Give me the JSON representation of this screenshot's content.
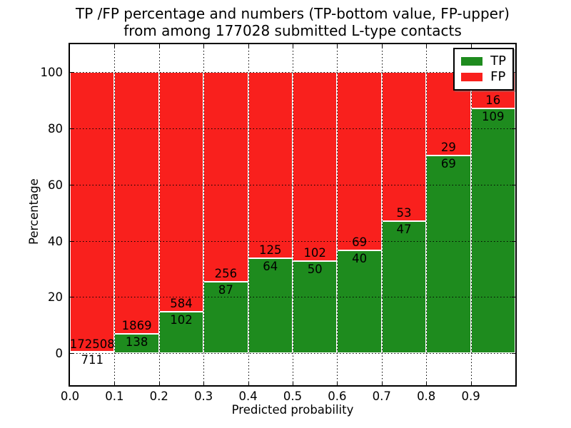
{
  "chart_data": {
    "type": "bar",
    "stacked": true,
    "title_line1": "TP /FP percentage and numbers (TP-bottom value, FP-upper)",
    "title_line2": "from among 177028 submitted L-type contacts",
    "xlabel": "Predicted probability",
    "ylabel": "Percentage",
    "x_ticks": [
      "0.0",
      "0.1",
      "0.2",
      "0.3",
      "0.4",
      "0.5",
      "0.6",
      "0.7",
      "0.8",
      "0.9"
    ],
    "y_ticks": [
      0,
      20,
      40,
      60,
      80,
      100
    ],
    "xlim": [
      0.0,
      1.0
    ],
    "ylim": [
      -11.4,
      110.0
    ],
    "bar_width": 0.1,
    "grid": true,
    "legend_position": "upper right",
    "colors": {
      "tp": "#1e8b1e",
      "fp": "#f9201d"
    },
    "legend": [
      {
        "label": "TP",
        "color": "#1e8b1e"
      },
      {
        "label": "FP",
        "color": "#f9201d"
      }
    ],
    "bins": [
      {
        "range": "0.0-0.1",
        "tp": 711,
        "fp": 172508
      },
      {
        "range": "0.1-0.2",
        "tp": 138,
        "fp": 1869
      },
      {
        "range": "0.2-0.3",
        "tp": 102,
        "fp": 584
      },
      {
        "range": "0.3-0.4",
        "tp": 87,
        "fp": 256
      },
      {
        "range": "0.4-0.5",
        "tp": 64,
        "fp": 125
      },
      {
        "range": "0.5-0.6",
        "tp": 50,
        "fp": 102
      },
      {
        "range": "0.6-0.7",
        "tp": 40,
        "fp": 69
      },
      {
        "range": "0.7-0.8",
        "tp": 47,
        "fp": 53
      },
      {
        "range": "0.8-0.9",
        "tp": 69,
        "fp": 29
      },
      {
        "range": "0.9-1.0",
        "tp": 109,
        "fp": 16
      }
    ]
  }
}
